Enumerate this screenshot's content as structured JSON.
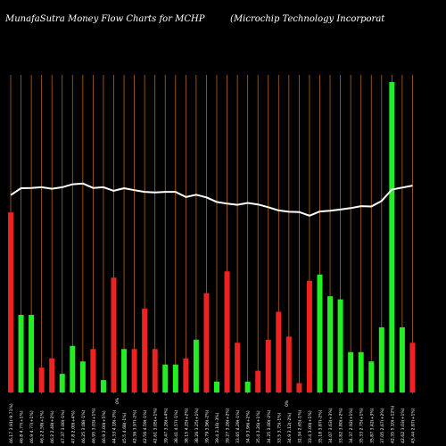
{
  "header": {
    "left": "MunafaSutra  Money Flow  Charts for MCHP",
    "right": "(Microchip Technology Incorporat"
  },
  "colors": {
    "background": "#000000",
    "gridline": "#b5651d",
    "inflow": "#22ee22",
    "outflow": "#ee2222",
    "price_line": "#ffffff"
  },
  "chart_data": {
    "type": "bar",
    "title": "MunafaSutra  Money Flow  Charts for MCHP",
    "grid": "vertical",
    "ylim": [
      0,
      100
    ],
    "price_ylim": [
      0,
      100
    ],
    "categories": [
      "01/12/2024",
      "29/11/2024",
      "27/11/2024",
      "26/11/2024",
      "25/11/2024",
      "22/11/2024",
      "21/11/2024",
      "20/11/2024",
      "19/11/2024",
      "18/11/2024",
      "15/11/2024",
      "14/11/2024",
      "13/11/2024",
      "12/11/2024",
      "11/11/2024",
      "08/11/2024",
      "07/11/2024",
      "06/11/2024",
      "05/11/2024",
      "04/11/2024",
      "01/11/2024",
      "31/10/2024",
      "30/10/2024",
      "29/10/2024",
      "28/10/2024",
      "25/10/2024",
      "24/10/2024",
      "23/10/2024",
      "22/10/2024",
      "21/10/2024",
      "18/10/2024",
      "17/10/2024",
      "16/10/2024",
      "15/10/2024",
      "14/10/2024",
      "11/10/2024",
      "10/10/2024",
      "09/10/2024",
      "08/10/2024",
      "07/10/2024"
    ],
    "series": [
      {
        "values": [
          58,
          25,
          25,
          8,
          11,
          6,
          15,
          10,
          14,
          4,
          37,
          14,
          14,
          27,
          14,
          9,
          9,
          11,
          17,
          32,
          3.5,
          39,
          16,
          3.5,
          7,
          17,
          26,
          18,
          3,
          36,
          38,
          31,
          30,
          13,
          13,
          10,
          21,
          100,
          21,
          16
        ],
        "direction": [
          "out",
          "in",
          "in",
          "out",
          "out",
          "in",
          "in",
          "in",
          "out",
          "in",
          "out",
          "in",
          "out",
          "out",
          "out",
          "in",
          "in",
          "out",
          "in",
          "out",
          "in",
          "out",
          "out",
          "in",
          "out",
          "out",
          "out",
          "out",
          "out",
          "out",
          "in",
          "in",
          "in",
          "in",
          "in",
          "in",
          "in",
          "in",
          "in",
          "out"
        ]
      },
      {
        "type": "line",
        "values": [
          63,
          70,
          70.3,
          71,
          69.5,
          71,
          74,
          74.8,
          70.3,
          71,
          67.4,
          70,
          68,
          66.3,
          65.6,
          66.3,
          66.3,
          61,
          63.4,
          60.6,
          56,
          54.3,
          53.1,
          55,
          53.5,
          50.6,
          47.4,
          46,
          45.7,
          42,
          46.3,
          47,
          48.3,
          49.7,
          51.7,
          51.4,
          57.1,
          68.6,
          70.6,
          72.6
        ]
      }
    ],
    "xtick_labels": [
      "46.17 3.91(-9.71%)",
      "46.8 4.77(+1%)",
      "46.9 4.77(+1%)",
      "46.2 2.58(+1%)",
      "46.2 2.48(+2%)",
      "47.37 3.00(-1%)",
      "47.8 2.00(+4%)",
      "46.25 3.08(-1%)",
      "46.95 3.03(+1%)",
      "46.9 3.00(+5%)",
      "44.33 4.18(-3%)",
      "45.5 4.68(-1%)",
      "42.36 3.97(-2%)",
      "42.56 4.59(-1%)",
      "42.61 3.05(+1%)",
      "39.47 3.26(+4%)",
      "38.41 4.57(-1%)",
      "38.15 4.25(+2%)",
      "38.26 3.25(+1%)",
      "39.79 3.96(-2%)",
      "39.4 3.16(-3%)",
      "39.27 3.26(+2%)",
      "33.65 4.29(-1%)",
      "34.9 3.96(+2%)",
      "35.4 3.26(+1%)",
      "34.25 3.00(-2%)",
      "33.5 3.75(-1%)",
      "34.9 3.12(-2%)",
      "32.34 2.65(-1%)",
      "33.4 3.00(+1%)",
      "35.18 3.87(-2%)",
      "34.07 3.63(+3%)",
      "33.82 3.80(+2%)",
      "34.37 2.92(+1%)",
      "35.33 2.75(+1%)",
      "35.87 3.42(+3%)",
      "37.05 2.67(+2%)",
      "42.35 5.10(+12%)",
      "42.62 3.03(+1%)",
      "43.44 2.87(+1%)"
    ],
    "annotations": [
      "0%",
      "0%"
    ]
  }
}
